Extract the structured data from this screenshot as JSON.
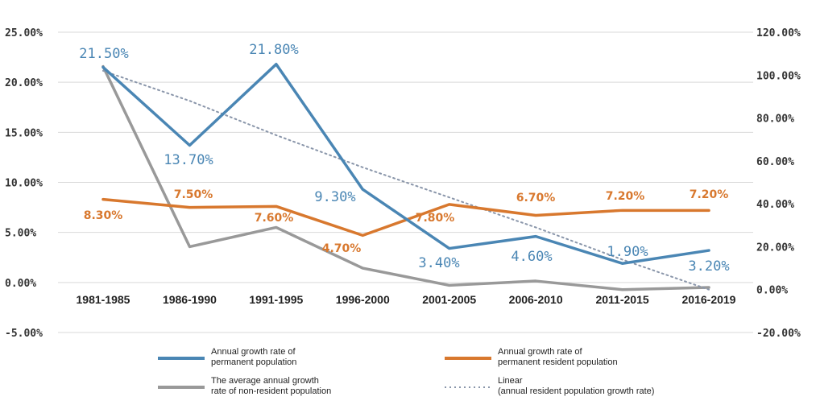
{
  "chart_data": {
    "type": "line",
    "categories": [
      "1981-1985",
      "1986-1990",
      "1991-1995",
      "1996-2000",
      "2001-2005",
      "2006-2010",
      "2011-2015",
      "2016-2019"
    ],
    "left_axis": {
      "ylim": [
        -5,
        25
      ],
      "ticks": [
        "25.00%",
        "20.00%",
        "15.00%",
        "10.00%",
        "5.00%",
        "0.00%",
        "-5.00%"
      ],
      "tick_values": [
        25,
        20,
        15,
        10,
        5,
        0,
        -5
      ]
    },
    "right_axis": {
      "ylim": [
        -20,
        120
      ],
      "ticks": [
        "120.00%",
        "100.00%",
        "80.00%",
        "60.00%",
        "40.00%",
        "20.00%",
        "0.00%",
        "-20.00%"
      ],
      "tick_values": [
        120,
        100,
        80,
        60,
        40,
        20,
        0,
        -20
      ]
    },
    "series": [
      {
        "name": "Annual growth rate of permanent population",
        "color": "#4a86b4",
        "axis": "left",
        "values": [
          21.5,
          13.7,
          21.8,
          9.3,
          3.4,
          4.6,
          1.9,
          3.2
        ],
        "labels": [
          "21.50%",
          "13.70%",
          "21.80%",
          "9.30%",
          "3.40%",
          "4.60%",
          "1.90%",
          "3.20%"
        ]
      },
      {
        "name": "Annual growth rate of permanent resident population",
        "color": "#d8782e",
        "axis": "left",
        "values": [
          8.3,
          7.5,
          7.6,
          4.7,
          7.8,
          6.7,
          7.2,
          7.2
        ],
        "labels": [
          "8.30%",
          "7.50%",
          "7.60%",
          "4.70%",
          "7.80%",
          "6.70%",
          "7.20%",
          "7.20%"
        ]
      },
      {
        "name": "The average annual growth rate of non-resident population",
        "color": "#999999",
        "axis": "right",
        "values": [
          104,
          20,
          29,
          10,
          2,
          4,
          0,
          1
        ]
      },
      {
        "name": "Linear (annual resident population growth rate)",
        "color": "#8a96aa",
        "axis": "right",
        "style": "dotted",
        "values": [
          102,
          88,
          72,
          57,
          43,
          29,
          14,
          0
        ]
      }
    ],
    "legend": {
      "position": "bottom",
      "items": [
        {
          "line1": "Annual growth rate of",
          "line2": "permanent population",
          "color": "#4a86b4",
          "style": "solid"
        },
        {
          "line1": "Annual growth rate of",
          "line2": "permanent resident population",
          "color": "#d8782e",
          "style": "solid"
        },
        {
          "line1": "The average annual growth",
          "line2": "rate of non-resident population",
          "color": "#999999",
          "style": "solid"
        },
        {
          "line1": "Linear",
          "line2": "(annual resident population growth rate)",
          "color": "#8a96aa",
          "style": "dotted"
        }
      ]
    }
  }
}
